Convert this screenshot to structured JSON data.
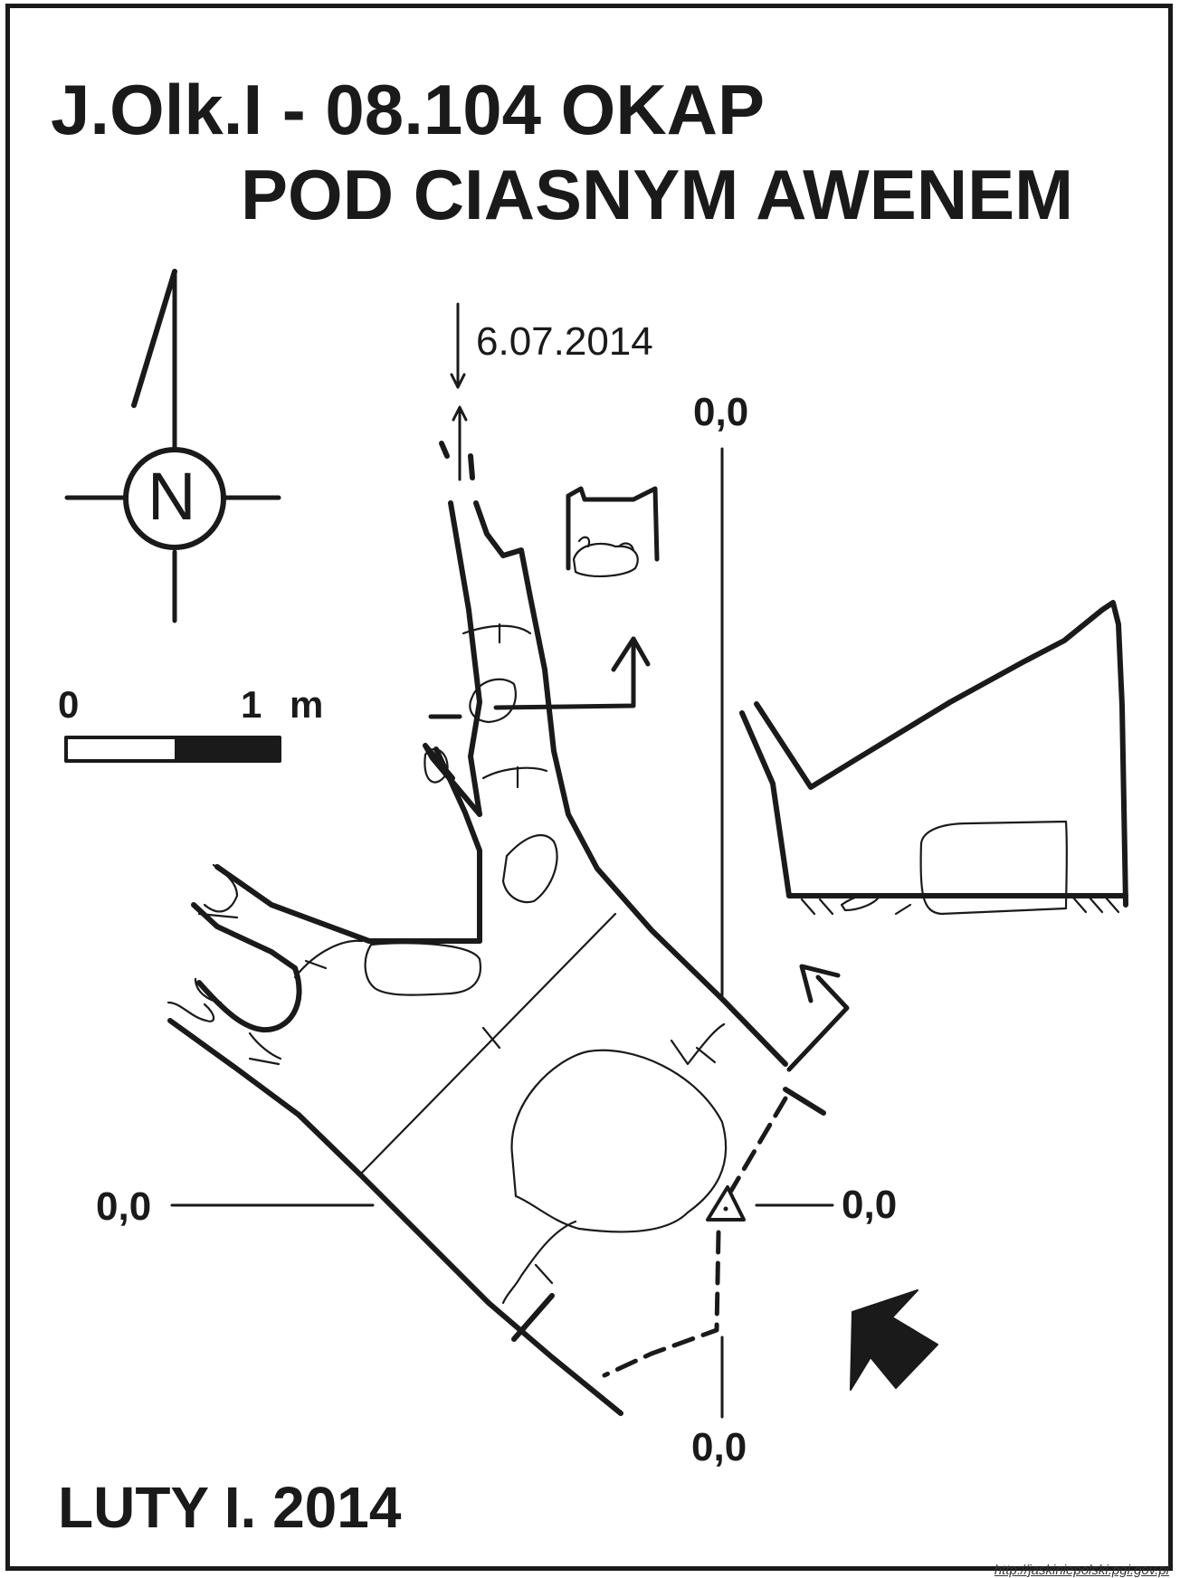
{
  "title": {
    "line1": "J.Olk.I - 08.104  OKAP",
    "line2": "POD CIASNYM AWENEM"
  },
  "compass": {
    "letter": "N",
    "icon": "north-arrow-icon"
  },
  "scale_bar": {
    "zero": "0",
    "one": "1",
    "unit": "m"
  },
  "survey_date": "6.07.2014",
  "datum_labels": {
    "top": "0,0",
    "left": "0,0",
    "right": "0,0",
    "bottom": "0,0"
  },
  "footer": {
    "date": "LUTY I. 2014"
  },
  "source_url": "http://jaskiniepolski.pgi.gov.pl",
  "colors": {
    "ink": "#1a1a1a",
    "background": "#ffffff"
  }
}
